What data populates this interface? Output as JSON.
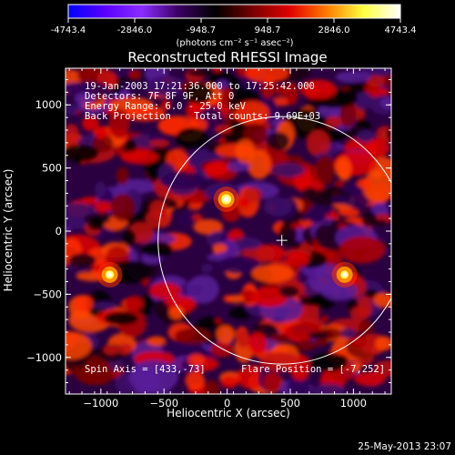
{
  "colorbar": {
    "ticks": [
      "-4743.4",
      "-2846.0",
      "-948.7",
      "948.7",
      "2846.0",
      "4743.4"
    ],
    "tick_values": [
      -4743.4,
      -2846.0,
      -948.7,
      948.7,
      2846.0,
      4743.4
    ],
    "range": [
      -4743.4,
      4743.4
    ],
    "units": "(photons cm⁻² s⁻¹ asec⁻²)",
    "colors": [
      "#0000ff",
      "#5a00ff",
      "#8a2cff",
      "#3a0060",
      "#000000",
      "#7a0000",
      "#e00000",
      "#ff7a00",
      "#ffff40",
      "#ffffff"
    ]
  },
  "chart_data": {
    "type": "heatmap",
    "title": "Reconstructed RHESSI Image",
    "xlabel": "Heliocentric X (arcsec)",
    "ylabel": "Heliocentric Y (arcsec)",
    "xlim": [
      -1280,
      1300
    ],
    "ylim": [
      -1290,
      1290
    ],
    "xticks": [
      -1000,
      -500,
      0,
      500,
      1000
    ],
    "xtick_labels": [
      "−1000",
      "−500",
      "0",
      "500",
      "1000"
    ],
    "yticks": [
      -1000,
      -500,
      0,
      500,
      1000
    ],
    "ytick_labels": [
      "−1000",
      "−500",
      "0",
      "500",
      "1000"
    ],
    "info_lines": [
      "19-Jan-2003 17:21:36.000 to 17:25:42.000",
      "Detectors: 7F 8F 9F, Att 0",
      "Energy Range: 6.0 - 25.0 keV",
      "Back Projection    Total counts: 9.69E+03"
    ],
    "spin_axis_text": "Spin Axis = [433,-73]",
    "flare_position_text": "Flare Position = [-7,252]",
    "solar_limb": {
      "center": [
        433,
        -73
      ],
      "radius": 980
    },
    "spin_axis_marker": [
      433,
      -73
    ],
    "sources": [
      {
        "x": -7,
        "y": 252,
        "level": 1.0
      },
      {
        "x": -930,
        "y": -345,
        "level": 0.85
      },
      {
        "x": 930,
        "y": -345,
        "level": 0.8
      }
    ],
    "grid": false
  },
  "timestamp": "25-May-2013 23:07"
}
